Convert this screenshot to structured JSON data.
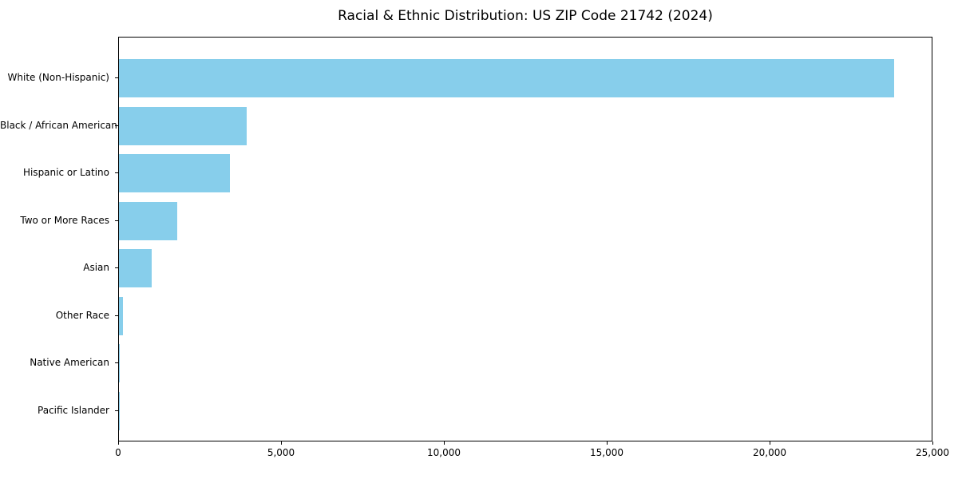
{
  "chart_data": {
    "type": "bar",
    "orientation": "horizontal",
    "title": "Racial & Ethnic Distribution: US ZIP Code 21742 (2024)",
    "xlabel": "",
    "ylabel": "",
    "categories": [
      "White (Non-Hispanic)",
      "Black / African American",
      "Hispanic or Latino",
      "Two or More Races",
      "Asian",
      "Other Race",
      "Native American",
      "Pacific Islander"
    ],
    "values": [
      23800,
      3930,
      3400,
      1790,
      1000,
      115,
      30,
      5
    ],
    "xlim": [
      0,
      25000
    ],
    "xticks": [
      0,
      5000,
      10000,
      15000,
      20000,
      25000
    ],
    "xtick_labels": [
      "0",
      "5,000",
      "10,000",
      "15,000",
      "20,000",
      "25,000"
    ],
    "bar_color": "#87CEEB",
    "text_color": "#000000",
    "background_color": "#ffffff",
    "grid": false,
    "legend": "none"
  }
}
